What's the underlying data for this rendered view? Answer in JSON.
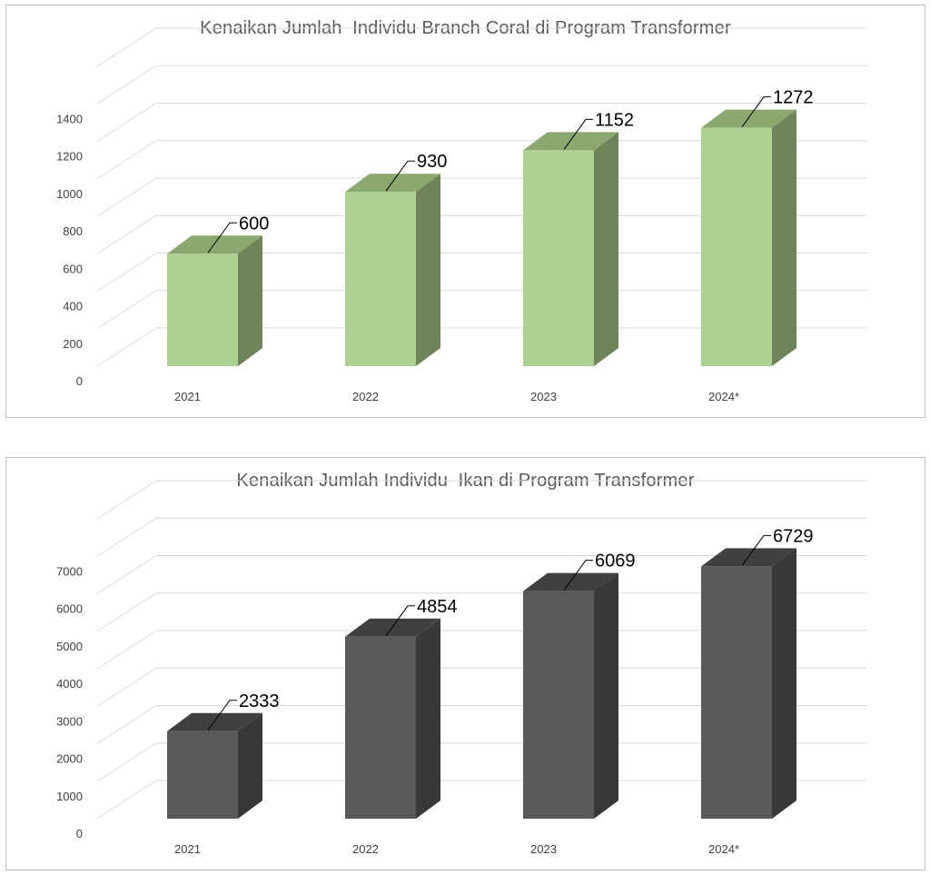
{
  "chart_data": [
    {
      "type": "bar",
      "title": "Kenaikan Jumlah  Individu Branch Coral di Program Transformer",
      "categories": [
        "2021",
        "2022",
        "2023",
        "2024*"
      ],
      "values": [
        600,
        930,
        1152,
        1272
      ],
      "data_labels": [
        "600",
        "930",
        "1152",
        "1272"
      ],
      "yticks": [
        "0",
        "200",
        "400",
        "600",
        "800",
        "1000",
        "1200",
        "1400"
      ],
      "ylim": [
        0,
        1400
      ],
      "grid": true,
      "legend": "none",
      "style": "3d-column",
      "colors": {
        "front": "#afd093",
        "top": "#8ba870",
        "side": "#6f845a"
      }
    },
    {
      "type": "bar",
      "title": "Kenaikan Jumlah Individu  Ikan di Program Transformer",
      "categories": [
        "2021",
        "2022",
        "2023",
        "2024*"
      ],
      "values": [
        2333,
        4854,
        6069,
        6729
      ],
      "data_labels": [
        "2333",
        "4854",
        "6069",
        "6729"
      ],
      "yticks": [
        "0",
        "1000",
        "2000",
        "3000",
        "4000",
        "5000",
        "6000",
        "7000"
      ],
      "ylim": [
        0,
        7000
      ],
      "grid": true,
      "legend": "none",
      "style": "3d-column",
      "colors": {
        "front": "#595959",
        "top": "#404040",
        "side": "#383838"
      }
    }
  ]
}
